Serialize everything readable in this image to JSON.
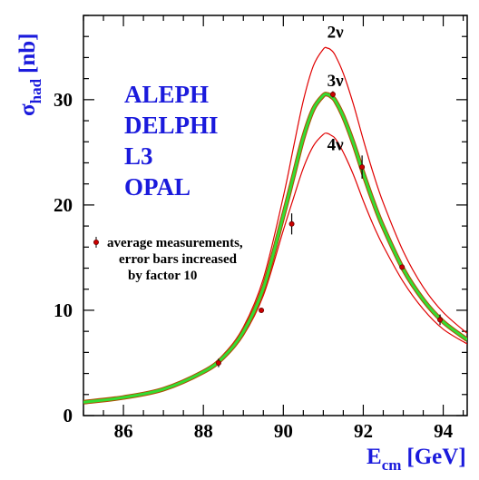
{
  "chart_data": {
    "type": "line",
    "xlabel": {
      "main": "E",
      "sub": "cm",
      "unit": "[GeV]"
    },
    "ylabel": {
      "main": "σ",
      "sub": "had",
      "unit": "[nb]"
    },
    "xlim": [
      85,
      94.6
    ],
    "ylim": [
      0,
      38
    ],
    "xticks": [
      86,
      88,
      90,
      92,
      94
    ],
    "yticks": [
      0,
      10,
      20,
      30
    ],
    "experiments": [
      "ALEPH",
      "DELPHI",
      "L3",
      "OPAL"
    ],
    "legend": {
      "placement": "left-middle",
      "lines": [
        "average measurements,",
        "error bars increased",
        "by factor 10"
      ]
    },
    "series": [
      {
        "name": "2ν",
        "color": "#e00000",
        "style": "thin",
        "x": [
          85.0,
          86.0,
          87.0,
          88.0,
          88.5,
          89.0,
          89.5,
          90.0,
          90.25,
          90.5,
          90.75,
          91.0,
          91.1,
          91.2,
          91.3,
          91.5,
          91.75,
          92.0,
          92.25,
          92.5,
          93.0,
          93.5,
          94.0,
          94.6
        ],
        "y": [
          1.27,
          1.75,
          2.6,
          4.3,
          5.8,
          8.4,
          13.0,
          20.8,
          25.4,
          29.9,
          33.2,
          34.8,
          34.9,
          34.7,
          34.2,
          32.5,
          29.6,
          26.2,
          23.0,
          20.2,
          15.6,
          12.2,
          9.8,
          7.8
        ]
      },
      {
        "name": "3ν",
        "color": "#33dd33",
        "style": "thick",
        "x": [
          85.0,
          86.0,
          87.0,
          88.0,
          88.5,
          89.0,
          89.5,
          90.0,
          90.25,
          90.5,
          90.75,
          91.0,
          91.1,
          91.2,
          91.3,
          91.5,
          91.75,
          92.0,
          92.25,
          92.5,
          93.0,
          93.5,
          94.0,
          94.6
        ],
        "y": [
          1.27,
          1.72,
          2.5,
          4.15,
          5.55,
          7.95,
          12.1,
          19.0,
          22.7,
          26.4,
          29.1,
          30.4,
          30.5,
          30.3,
          29.9,
          28.4,
          25.9,
          23.0,
          20.3,
          17.9,
          13.9,
          11.0,
          8.9,
          7.2
        ]
      },
      {
        "name": "4ν",
        "color": "#e00000",
        "style": "thin",
        "x": [
          85.0,
          86.0,
          87.0,
          88.0,
          88.5,
          89.0,
          89.5,
          90.0,
          90.25,
          90.5,
          90.75,
          91.0,
          91.1,
          91.2,
          91.3,
          91.5,
          91.75,
          92.0,
          92.25,
          92.5,
          93.0,
          93.5,
          94.0,
          94.6
        ],
        "y": [
          1.27,
          1.7,
          2.45,
          4.0,
          5.35,
          7.6,
          11.4,
          17.6,
          20.6,
          23.5,
          25.6,
          26.7,
          26.8,
          26.6,
          26.3,
          25.0,
          22.9,
          20.4,
          18.1,
          16.1,
          12.7,
          10.1,
          8.2,
          6.8
        ]
      }
    ],
    "measurements": {
      "x": [
        88.38,
        89.45,
        90.21,
        91.24,
        91.97,
        92.97,
        93.92
      ],
      "y": [
        5.0,
        10.0,
        18.2,
        30.5,
        23.6,
        14.1,
        9.1
      ],
      "err": [
        0.4,
        0.2,
        1.0,
        0.3,
        1.1,
        0.2,
        0.5
      ]
    },
    "curve_labels": [
      {
        "text": "2ν",
        "x": 91.3,
        "y": 35.9
      },
      {
        "text": "3ν",
        "x": 91.3,
        "y": 31.3
      },
      {
        "text": "4ν",
        "x": 91.3,
        "y": 25.2
      }
    ]
  }
}
